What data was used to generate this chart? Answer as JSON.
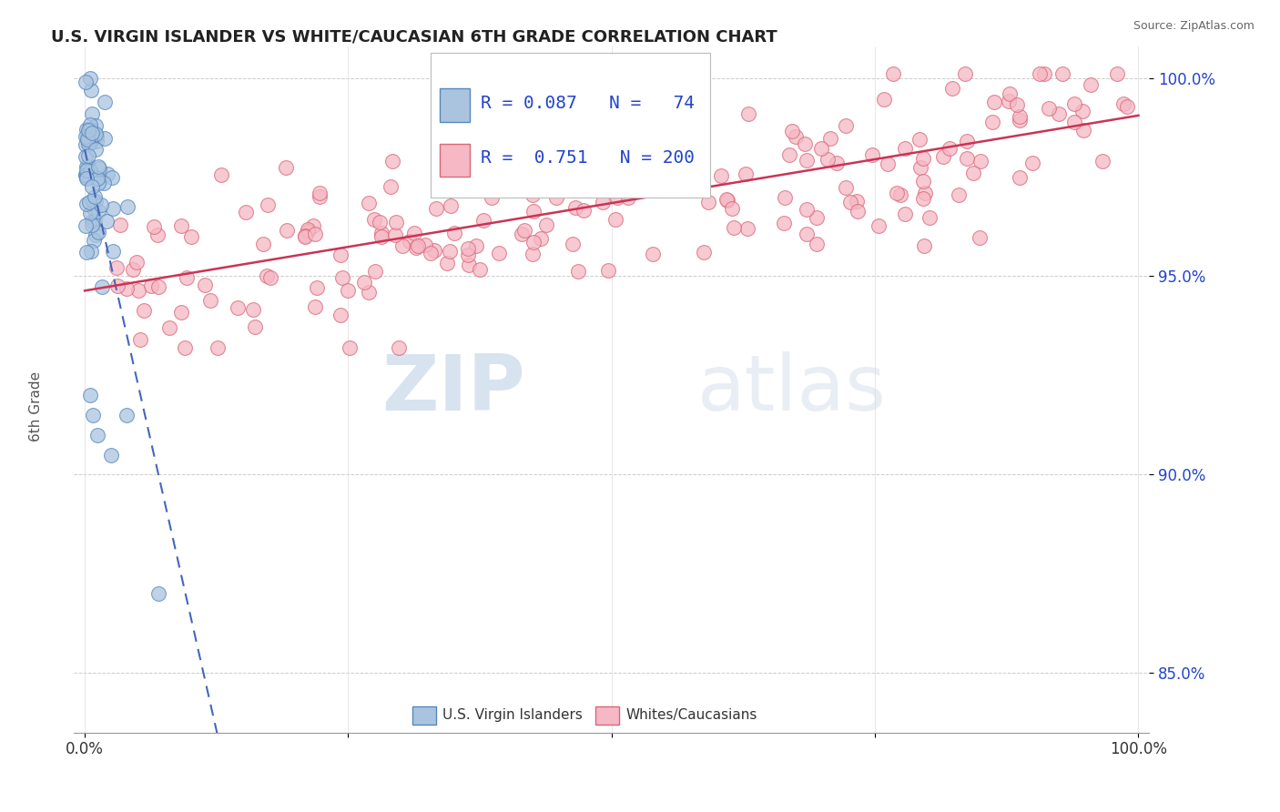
{
  "title": "U.S. VIRGIN ISLANDER VS WHITE/CAUCASIAN 6TH GRADE CORRELATION CHART",
  "source": "Source: ZipAtlas.com",
  "ylabel": "6th Grade",
  "xlim": [
    -0.01,
    1.01
  ],
  "ylim": [
    0.835,
    1.008
  ],
  "yticks": [
    0.85,
    0.9,
    0.95,
    1.0
  ],
  "ytick_labels": [
    "85.0%",
    "90.0%",
    "95.0%",
    "100.0%"
  ],
  "xticks": [
    0.0,
    0.25,
    0.5,
    0.75,
    1.0
  ],
  "xtick_labels": [
    "0.0%",
    "",
    "",
    "",
    "100.0%"
  ],
  "blue_R": 0.087,
  "blue_N": 74,
  "pink_R": 0.751,
  "pink_N": 200,
  "blue_color": "#aac4e0",
  "blue_edge": "#5588bb",
  "pink_color": "#f5b8c4",
  "pink_edge": "#d86878",
  "blue_line_color": "#4466bb",
  "pink_line_color": "#cc3355",
  "watermark_zip": "ZIP",
  "watermark_atlas": "atlas",
  "legend_blue_label": "U.S. Virgin Islanders",
  "legend_pink_label": "Whites/Caucasians"
}
